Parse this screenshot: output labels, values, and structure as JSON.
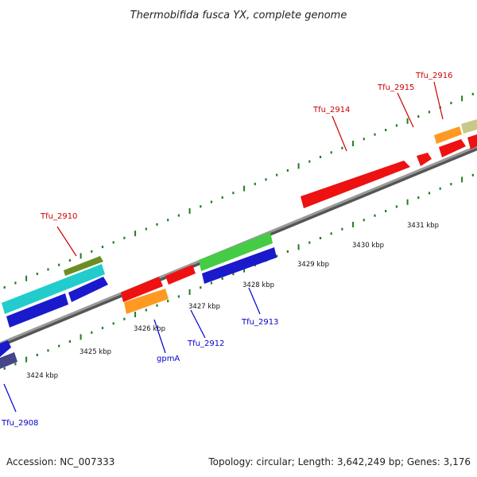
{
  "title": "Thermobifida fusca YX, complete genome",
  "footer": {
    "accession": "Accession: NC_007333",
    "summary": "Topology: circular; Length: 3,642,249 bp; Genes: 3,176"
  },
  "colors": {
    "backbone": "#8c8c8c",
    "backbone_shadow": "#555555",
    "ticks": "#1e7d1e",
    "label_forward": "#cc0000",
    "label_reverse": "#0000cc",
    "callout_forward": "#cc0000",
    "callout_reverse": "#0000cc"
  },
  "tick_labels": [
    "3424 kbp",
    "3425 kbp",
    "3426 kbp",
    "3427 kbp",
    "3428 kbp",
    "3429 kbp",
    "3430 kbp",
    "3431 kbp"
  ],
  "gene_labels": {
    "forward": [
      "Tfu_2910",
      "Tfu_2914",
      "Tfu_2915",
      "Tfu_2916"
    ],
    "reverse": [
      "Tfu_2908",
      "gpmA",
      "Tfu_2912",
      "Tfu_2913"
    ]
  },
  "genes": [
    {
      "track": "reverse-outer",
      "color": "#1a1acc",
      "direction": "forward"
    },
    {
      "track": "reverse-inner",
      "color": "#45458a",
      "direction": "forward"
    },
    {
      "track": "forward-inner",
      "color": "#ee1111",
      "direction": "forward"
    },
    {
      "track": "forward-inner",
      "color": "#ee1111",
      "direction": "forward"
    },
    {
      "track": "forward-outer",
      "color": "#44cc44",
      "direction": "forward"
    },
    {
      "track": "forward-top",
      "color": "#ff9922",
      "direction": "forward"
    },
    {
      "track": "reverse-outer",
      "color": "#1a1acc",
      "direction": "reverse"
    },
    {
      "track": "reverse-outer",
      "color": "#1a1acc",
      "direction": "reverse"
    },
    {
      "track": "reverse-outer",
      "color": "#1a1acc",
      "direction": "reverse"
    },
    {
      "track": "reverse-inner",
      "color": "#22cccc",
      "direction": "reverse"
    },
    {
      "track": "reverse-inner",
      "color": "#6b8e23",
      "direction": "forward"
    },
    {
      "track": "forward-inner",
      "color": "#ee1111",
      "direction": "reverse"
    },
    {
      "track": "forward-inner",
      "color": "#ee1111",
      "direction": "forward"
    },
    {
      "track": "forward-inner",
      "color": "#ee1111",
      "direction": "forward"
    },
    {
      "track": "forward-inner",
      "color": "#ee1111",
      "direction": "forward"
    },
    {
      "track": "forward-outer",
      "color": "#ff9922",
      "direction": "forward"
    },
    {
      "track": "forward-outer",
      "color": "#c8c88a",
      "direction": "forward"
    }
  ]
}
